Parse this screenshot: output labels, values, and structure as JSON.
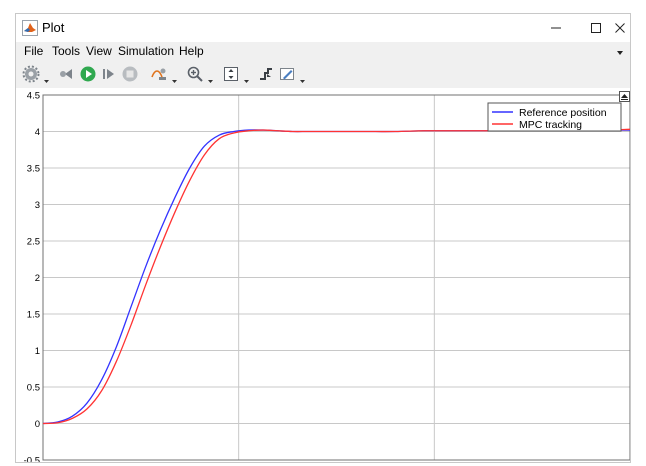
{
  "window": {
    "title": "Plot",
    "controls": [
      "minimize",
      "maximize",
      "close"
    ]
  },
  "menu": [
    "File",
    "Tools",
    "View",
    "Simulation",
    "Help"
  ],
  "toolbar_icons": [
    "gear-icon",
    "step-back-icon",
    "run-icon",
    "step-forward-icon",
    "stop-icon",
    "signal-selector-icon",
    "zoom-in-icon",
    "fit-view-icon",
    "triggers-icon",
    "style-icon"
  ],
  "colors": {
    "reference": "#3333ff",
    "tracking": "#ff3333",
    "grid": "#c8c8c8"
  },
  "chart_data": {
    "type": "line",
    "ylim": [
      -0.5,
      4.5
    ],
    "yticks": [
      "4.5",
      "4",
      "3.5",
      "3",
      "2.5",
      "2",
      "1.5",
      "1",
      "0.5",
      "0",
      "-0.5"
    ],
    "xlim": [
      0,
      1
    ],
    "legend": {
      "position": "top-right",
      "entries": [
        "Reference position",
        "MPC tracking"
      ]
    },
    "series": [
      {
        "name": "Reference position",
        "x": [
          0,
          0.025,
          0.05,
          0.075,
          0.1,
          0.125,
          0.15,
          0.175,
          0.2,
          0.225,
          0.25,
          0.275,
          0.3,
          0.325,
          0.35,
          0.375,
          0.4,
          0.425,
          0.45,
          0.475,
          0.5,
          0.55,
          0.6,
          0.65,
          0.7,
          0.75,
          0.8,
          0.85,
          0.9,
          0.95,
          1.0
        ],
        "y": [
          0,
          0.02,
          0.1,
          0.28,
          0.6,
          1.05,
          1.6,
          2.15,
          2.65,
          3.1,
          3.5,
          3.8,
          3.95,
          4.0,
          4.02,
          4.02,
          4.01,
          4.0,
          4.0,
          4.0,
          4.0,
          4.0,
          4.0,
          4.01,
          4.01,
          4.01,
          4.01,
          4.02,
          4.02,
          4.02,
          4.02
        ]
      },
      {
        "name": "MPC tracking",
        "x": [
          0,
          0.025,
          0.05,
          0.075,
          0.1,
          0.125,
          0.15,
          0.175,
          0.2,
          0.225,
          0.25,
          0.275,
          0.3,
          0.325,
          0.35,
          0.375,
          0.4,
          0.425,
          0.45,
          0.475,
          0.5,
          0.55,
          0.6,
          0.65,
          0.7,
          0.75,
          0.8,
          0.85,
          0.9,
          0.95,
          1.0
        ],
        "y": [
          0,
          0.01,
          0.07,
          0.2,
          0.45,
          0.85,
          1.35,
          1.9,
          2.42,
          2.9,
          3.33,
          3.68,
          3.9,
          3.98,
          4.01,
          4.02,
          4.01,
          4.0,
          4.0,
          4.0,
          4.0,
          4.0,
          4.0,
          4.01,
          4.01,
          4.01,
          4.01,
          4.02,
          4.02,
          4.02,
          4.03
        ]
      }
    ]
  }
}
